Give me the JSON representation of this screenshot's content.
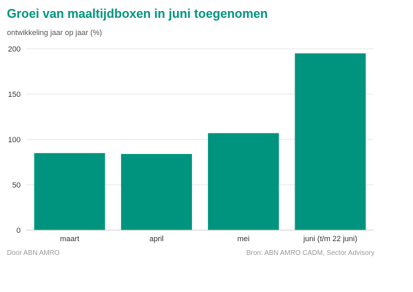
{
  "title": "Groei van maaltijdboxen in juni toegenomen",
  "subtitle": "ontwikkeling jaar op jaar (%)",
  "footer": {
    "left": "Door ABN AMRO",
    "right": "Bron: ABN AMRO CADM, Sector Advisory"
  },
  "colors": {
    "accent": "#00947f",
    "bar": "#00947f"
  },
  "chart_data": {
    "type": "bar",
    "categories": [
      "maart",
      "april",
      "mei",
      "juni (t/m 22 juni)"
    ],
    "values": [
      85,
      84,
      107,
      195
    ],
    "ylim": [
      0,
      200
    ],
    "yticks": [
      0,
      50,
      100,
      150,
      200
    ],
    "grid": true,
    "legend": "none"
  }
}
